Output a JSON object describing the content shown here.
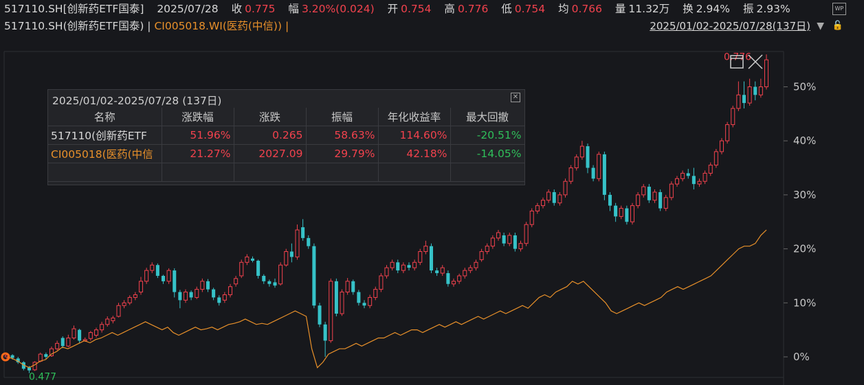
{
  "header": {
    "code": "517110.SH[创新药ETF国泰]",
    "date": "2025/07/28",
    "close_label": "收",
    "close": "0.775",
    "chg_label": "幅",
    "chg": "3.20%(0.024)",
    "open_label": "开",
    "open": "0.754",
    "high_label": "高",
    "high": "0.776",
    "low_label": "低",
    "low": "0.754",
    "avg_label": "均",
    "avg": "0.766",
    "vol_label": "量",
    "vol": "11.32万",
    "turn_label": "换",
    "turn": "2.94%",
    "amp_label": "振",
    "amp": "2.93%"
  },
  "legend": {
    "series1": "517110.SH(创新药ETF国泰) |",
    "series2": "CI005018.WI(医药(中信)) |",
    "range": "2025/01/02-2025/07/28(137日)"
  },
  "panel": {
    "title": "2025/01/02-2025/07/28 (137日)",
    "columns": [
      "名称",
      "涨跌幅",
      "涨跌",
      "振幅",
      "年化收益率",
      "最大回撤"
    ],
    "rows": [
      [
        "517110(创新药ETF",
        "51.96%",
        "0.265",
        "58.63%",
        "114.60%",
        "-20.51%"
      ],
      [
        "CI005018(医药(中信",
        "21.27%",
        "2027.09",
        "29.79%",
        "42.18%",
        "-14.05%"
      ]
    ]
  },
  "chart_data": {
    "type": "line",
    "y_unit": "%",
    "y_ticks": [
      "0%",
      "10%",
      "20%",
      "30%",
      "40%",
      "50%"
    ],
    "ylim": [
      -3.5,
      56
    ],
    "markers": {
      "high": "0.776",
      "low": "0.477"
    },
    "colors": {
      "up": "#f2424d",
      "down": "#36c2c8",
      "index_line": "#e8902a",
      "start_marker": "#ff6a1a"
    },
    "candles": [
      [
        0.0,
        0.3,
        -0.5,
        0.6
      ],
      [
        0.3,
        -0.2,
        -0.5,
        0.5
      ],
      [
        -0.3,
        -1.0,
        -1.3,
        0.0
      ],
      [
        -1.0,
        -2.2,
        -2.5,
        -0.8
      ],
      [
        -2.0,
        -2.5,
        -3.0,
        -1.7
      ],
      [
        -2.4,
        -1.0,
        -2.6,
        -0.8
      ],
      [
        -0.8,
        0.5,
        -1.0,
        0.8
      ],
      [
        0.5,
        0.0,
        -0.4,
        0.8
      ],
      [
        0.2,
        1.5,
        0.0,
        1.9
      ],
      [
        1.5,
        2.5,
        1.2,
        3.0
      ],
      [
        3.5,
        2.0,
        1.6,
        3.8
      ],
      [
        2.0,
        3.5,
        1.8,
        4.1
      ],
      [
        3.5,
        5.2,
        3.2,
        5.8
      ],
      [
        5.0,
        3.0,
        2.6,
        5.2
      ],
      [
        3.0,
        3.2,
        2.8,
        3.6
      ],
      [
        3.4,
        4.5,
        3.0,
        4.8
      ],
      [
        4.0,
        5.0,
        3.6,
        5.4
      ],
      [
        5.0,
        6.0,
        4.5,
        6.5
      ],
      [
        6.0,
        7.0,
        5.6,
        7.5
      ],
      [
        6.7,
        7.2,
        6.2,
        7.6
      ],
      [
        7.5,
        9.5,
        7.3,
        10.0
      ],
      [
        9.5,
        10.0,
        9.0,
        10.5
      ],
      [
        10.0,
        11.0,
        9.6,
        11.4
      ],
      [
        11.0,
        11.5,
        10.5,
        12.0
      ],
      [
        12.0,
        14.0,
        11.5,
        14.8
      ],
      [
        14.0,
        16.0,
        13.5,
        16.5
      ],
      [
        16.0,
        17.0,
        15.5,
        17.5
      ],
      [
        17.0,
        15.0,
        14.6,
        17.3
      ],
      [
        15.0,
        14.0,
        13.5,
        15.2
      ],
      [
        14.0,
        16.0,
        13.5,
        16.4
      ],
      [
        16.0,
        12.0,
        11.0,
        16.4
      ],
      [
        12.0,
        10.5,
        9.0,
        12.4
      ],
      [
        10.5,
        12.0,
        10.0,
        12.5
      ],
      [
        12.0,
        11.0,
        10.5,
        12.3
      ],
      [
        11.0,
        12.5,
        10.7,
        13.0
      ],
      [
        12.5,
        14.0,
        12.0,
        14.5
      ],
      [
        14.0,
        12.5,
        12.0,
        14.4
      ],
      [
        12.5,
        11.0,
        10.5,
        12.8
      ],
      [
        11.0,
        10.0,
        9.5,
        11.4
      ],
      [
        10.5,
        11.5,
        10.0,
        12.0
      ],
      [
        11.5,
        13.0,
        11.0,
        13.5
      ],
      [
        13.5,
        14.5,
        13.0,
        15.0
      ],
      [
        15.0,
        17.5,
        14.6,
        18.0
      ],
      [
        17.5,
        18.5,
        17.0,
        19.0
      ],
      [
        18.2,
        17.8,
        17.5,
        18.6
      ],
      [
        17.8,
        15.0,
        14.5,
        18.0
      ],
      [
        15.0,
        14.0,
        13.5,
        15.3
      ],
      [
        14.0,
        13.5,
        13.0,
        14.3
      ],
      [
        13.8,
        13.2,
        12.8,
        14.5
      ],
      [
        13.5,
        17.0,
        13.2,
        17.5
      ],
      [
        17.0,
        19.5,
        16.7,
        20.0
      ],
      [
        19.5,
        18.5,
        17.5,
        21.0
      ],
      [
        18.5,
        23.5,
        18.0,
        24.5
      ],
      [
        24.0,
        22.0,
        21.5,
        25.5
      ],
      [
        22.0,
        20.5,
        20.0,
        22.5
      ],
      [
        20.5,
        9.5,
        9.0,
        21.0
      ],
      [
        9.5,
        6.0,
        5.5,
        10.0
      ],
      [
        6.0,
        3.0,
        0.0,
        6.5
      ],
      [
        3.0,
        14.0,
        2.6,
        14.5
      ],
      [
        14.0,
        8.0,
        7.5,
        14.5
      ],
      [
        8.0,
        12.0,
        7.6,
        12.5
      ],
      [
        12.0,
        14.0,
        11.5,
        14.6
      ],
      [
        14.0,
        12.0,
        11.5,
        14.3
      ],
      [
        12.0,
        10.0,
        9.5,
        12.4
      ],
      [
        10.0,
        9.5,
        9.0,
        10.5
      ],
      [
        9.5,
        11.0,
        9.0,
        11.5
      ],
      [
        11.0,
        12.5,
        10.5,
        13.0
      ],
      [
        12.5,
        15.0,
        12.0,
        15.5
      ],
      [
        15.0,
        16.5,
        14.5,
        17.0
      ],
      [
        16.5,
        17.5,
        16.0,
        18.0
      ],
      [
        17.5,
        16.0,
        15.5,
        18.0
      ],
      [
        16.0,
        17.0,
        15.5,
        17.5
      ],
      [
        17.0,
        16.5,
        16.0,
        17.5
      ],
      [
        16.5,
        17.5,
        16.0,
        18.0
      ],
      [
        17.5,
        19.5,
        17.0,
        20.0
      ],
      [
        19.5,
        20.5,
        19.0,
        21.5
      ],
      [
        20.5,
        16.0,
        15.5,
        21.0
      ],
      [
        16.0,
        15.5,
        15.0,
        16.5
      ],
      [
        15.5,
        16.5,
        15.0,
        17.0
      ],
      [
        15.5,
        13.5,
        13.0,
        16.0
      ],
      [
        13.5,
        14.0,
        13.0,
        14.5
      ],
      [
        14.0,
        15.0,
        13.5,
        15.4
      ],
      [
        15.0,
        16.0,
        14.5,
        16.5
      ],
      [
        16.0,
        16.5,
        15.5,
        17.0
      ],
      [
        16.5,
        17.5,
        16.0,
        18.0
      ],
      [
        18.0,
        19.5,
        17.6,
        20.0
      ],
      [
        19.5,
        20.5,
        19.0,
        21.0
      ],
      [
        20.5,
        22.0,
        20.0,
        22.5
      ],
      [
        22.0,
        23.0,
        21.5,
        23.5
      ],
      [
        22.5,
        21.0,
        20.5,
        23.0
      ],
      [
        21.0,
        22.5,
        20.5,
        23.0
      ],
      [
        22.5,
        20.0,
        19.5,
        23.0
      ],
      [
        20.0,
        21.0,
        19.5,
        21.5
      ],
      [
        21.0,
        24.5,
        20.5,
        25.0
      ],
      [
        24.5,
        27.0,
        24.0,
        27.5
      ],
      [
        27.0,
        28.0,
        26.5,
        28.5
      ],
      [
        28.0,
        29.0,
        27.5,
        29.5
      ],
      [
        29.0,
        30.5,
        28.5,
        31.0
      ],
      [
        30.5,
        28.5,
        28.0,
        31.0
      ],
      [
        28.5,
        30.0,
        28.0,
        30.5
      ],
      [
        30.0,
        32.5,
        29.5,
        33.0
      ],
      [
        32.5,
        35.0,
        32.0,
        35.5
      ],
      [
        35.0,
        37.0,
        34.5,
        37.5
      ],
      [
        37.0,
        39.0,
        36.5,
        40.0
      ],
      [
        39.0,
        35.0,
        34.0,
        39.5
      ],
      [
        35.0,
        33.0,
        32.5,
        35.5
      ],
      [
        33.0,
        37.5,
        32.5,
        38.0
      ],
      [
        37.5,
        30.0,
        29.0,
        38.0
      ],
      [
        30.0,
        28.0,
        27.0,
        30.5
      ],
      [
        28.0,
        26.0,
        25.0,
        28.5
      ],
      [
        26.0,
        27.5,
        25.5,
        28.0
      ],
      [
        27.5,
        25.0,
        24.5,
        28.0
      ],
      [
        25.0,
        28.0,
        24.5,
        28.5
      ],
      [
        28.0,
        30.0,
        27.5,
        30.5
      ],
      [
        30.0,
        31.5,
        29.5,
        32.0
      ],
      [
        31.5,
        29.0,
        28.5,
        32.0
      ],
      [
        29.0,
        30.5,
        28.5,
        31.0
      ],
      [
        30.5,
        27.5,
        27.0,
        31.0
      ],
      [
        27.5,
        29.5,
        27.0,
        30.0
      ],
      [
        29.5,
        32.0,
        29.0,
        32.5
      ],
      [
        32.0,
        33.0,
        31.5,
        33.5
      ],
      [
        33.0,
        34.0,
        32.5,
        34.5
      ],
      [
        34.0,
        33.5,
        33.0,
        34.8
      ],
      [
        33.5,
        32.0,
        31.0,
        35.0
      ],
      [
        32.0,
        32.5,
        31.5,
        33.0
      ],
      [
        32.5,
        34.0,
        32.0,
        34.5
      ],
      [
        34.0,
        35.5,
        33.5,
        36.0
      ],
      [
        35.5,
        38.0,
        35.0,
        38.5
      ],
      [
        38.0,
        40.0,
        37.5,
        40.5
      ],
      [
        40.0,
        43.0,
        39.5,
        43.5
      ],
      [
        43.0,
        46.0,
        42.5,
        46.5
      ],
      [
        46.0,
        48.5,
        45.5,
        51.0
      ],
      [
        48.5,
        47.0,
        46.0,
        51.0
      ],
      [
        47.0,
        50.0,
        46.5,
        51.5
      ],
      [
        50.0,
        48.5,
        47.5,
        51.0
      ],
      [
        48.5,
        50.0,
        48.0,
        51.5
      ],
      [
        50.0,
        55.0,
        49.5,
        56.0
      ]
    ],
    "index_line": [
      0.0,
      -0.3,
      -0.8,
      -1.5,
      -2.0,
      -1.5,
      -0.8,
      -0.5,
      0.5,
      1.0,
      1.8,
      1.5,
      2.0,
      2.5,
      3.0,
      2.6,
      3.2,
      3.5,
      4.0,
      4.5,
      4.0,
      4.5,
      5.0,
      5.5,
      6.0,
      6.5,
      6.0,
      5.5,
      5.0,
      5.5,
      4.5,
      4.0,
      4.5,
      5.0,
      5.5,
      5.0,
      5.2,
      5.5,
      5.0,
      5.5,
      6.0,
      6.2,
      6.5,
      7.0,
      6.5,
      6.0,
      6.2,
      6.0,
      6.5,
      7.0,
      7.5,
      8.0,
      8.5,
      8.0,
      7.5,
      1.5,
      -2.0,
      -1.0,
      0.5,
      1.0,
      1.5,
      1.5,
      2.0,
      2.5,
      2.0,
      2.5,
      3.0,
      3.5,
      3.5,
      4.0,
      4.5,
      4.0,
      4.5,
      5.0,
      5.0,
      4.5,
      5.0,
      5.5,
      6.0,
      5.5,
      6.0,
      6.5,
      6.0,
      6.5,
      7.0,
      7.5,
      7.0,
      7.5,
      8.0,
      8.5,
      8.0,
      8.5,
      9.0,
      9.5,
      9.0,
      10.0,
      11.0,
      11.5,
      11.0,
      12.0,
      12.5,
      13.0,
      14.0,
      13.5,
      14.0,
      13.0,
      12.0,
      11.0,
      10.0,
      8.5,
      8.0,
      8.5,
      9.0,
      9.5,
      10.0,
      9.5,
      10.0,
      10.5,
      11.0,
      12.0,
      12.5,
      13.0,
      12.5,
      13.0,
      13.5,
      14.0,
      14.5,
      15.0,
      16.0,
      17.0,
      18.0,
      19.0,
      20.0,
      20.5,
      20.5,
      21.0,
      22.5,
      23.5
    ]
  }
}
